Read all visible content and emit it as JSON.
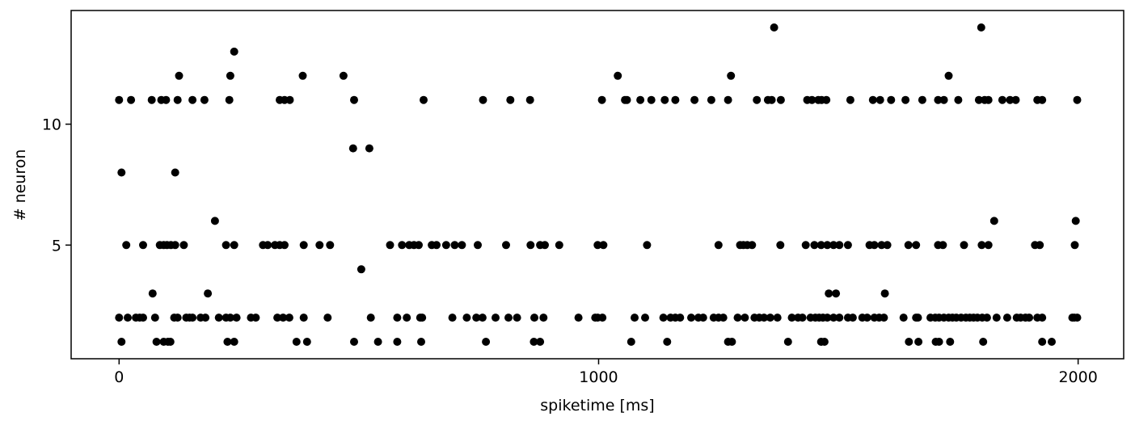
{
  "chart_data": {
    "type": "scatter",
    "title": "",
    "xlabel": "spiketime [ms]",
    "ylabel": "# neuron",
    "xlim": [
      -100,
      2095
    ],
    "ylim": [
      0.3,
      14.7
    ],
    "xticks": [
      0,
      1000,
      2000
    ],
    "xtick_labels": [
      "0",
      "1000",
      "2000"
    ],
    "yticks": [
      5,
      10
    ],
    "ytick_labels": [
      "5",
      "10"
    ],
    "grid": false,
    "marker_color": "#000000",
    "series": [
      {
        "points": [
          [
            0,
            11
          ],
          [
            25,
            11
          ],
          [
            68,
            11
          ],
          [
            88,
            11
          ],
          [
            98,
            11
          ],
          [
            122,
            11
          ],
          [
            153,
            11
          ],
          [
            178,
            11
          ],
          [
            230,
            11
          ],
          [
            335,
            11
          ],
          [
            345,
            11
          ],
          [
            356,
            11
          ],
          [
            490,
            11
          ],
          [
            635,
            11
          ],
          [
            759,
            11
          ],
          [
            816,
            11
          ],
          [
            857,
            11
          ],
          [
            1007,
            11
          ],
          [
            1055,
            11
          ],
          [
            1059,
            11
          ],
          [
            1087,
            11
          ],
          [
            1110,
            11
          ],
          [
            1138,
            11
          ],
          [
            1160,
            11
          ],
          [
            1200,
            11
          ],
          [
            1235,
            11
          ],
          [
            1270,
            11
          ],
          [
            1330,
            11
          ],
          [
            1353,
            11
          ],
          [
            1361,
            11
          ],
          [
            1380,
            11
          ],
          [
            1435,
            11
          ],
          [
            1445,
            11
          ],
          [
            1458,
            11
          ],
          [
            1465,
            11
          ],
          [
            1475,
            11
          ],
          [
            1525,
            11
          ],
          [
            1572,
            11
          ],
          [
            1587,
            11
          ],
          [
            1610,
            11
          ],
          [
            1640,
            11
          ],
          [
            1675,
            11
          ],
          [
            1708,
            11
          ],
          [
            1720,
            11
          ],
          [
            1750,
            11
          ],
          [
            1793,
            11
          ],
          [
            1805,
            11
          ],
          [
            1813,
            11
          ],
          [
            1842,
            11
          ],
          [
            1858,
            11
          ],
          [
            1870,
            11
          ],
          [
            1915,
            11
          ],
          [
            1925,
            11
          ],
          [
            1998,
            11
          ],
          [
            125,
            12
          ],
          [
            232,
            12
          ],
          [
            383,
            12
          ],
          [
            468,
            12
          ],
          [
            1040,
            12
          ],
          [
            1276,
            12
          ],
          [
            1730,
            12
          ],
          [
            240,
            13
          ],
          [
            1366,
            14
          ],
          [
            1798,
            14
          ],
          [
            5,
            8
          ],
          [
            117,
            8
          ],
          [
            488,
            9
          ],
          [
            522,
            9
          ],
          [
            200,
            6
          ],
          [
            1825,
            6
          ],
          [
            1995,
            6
          ],
          [
            15,
            5
          ],
          [
            50,
            5
          ],
          [
            85,
            5
          ],
          [
            93,
            5
          ],
          [
            100,
            5
          ],
          [
            108,
            5
          ],
          [
            117,
            5
          ],
          [
            135,
            5
          ],
          [
            223,
            5
          ],
          [
            240,
            5
          ],
          [
            300,
            5
          ],
          [
            310,
            5
          ],
          [
            325,
            5
          ],
          [
            335,
            5
          ],
          [
            345,
            5
          ],
          [
            385,
            5
          ],
          [
            418,
            5
          ],
          [
            440,
            5
          ],
          [
            565,
            5
          ],
          [
            590,
            5
          ],
          [
            605,
            5
          ],
          [
            615,
            5
          ],
          [
            625,
            5
          ],
          [
            652,
            5
          ],
          [
            662,
            5
          ],
          [
            682,
            5
          ],
          [
            700,
            5
          ],
          [
            715,
            5
          ],
          [
            748,
            5
          ],
          [
            807,
            5
          ],
          [
            858,
            5
          ],
          [
            878,
            5
          ],
          [
            888,
            5
          ],
          [
            918,
            5
          ],
          [
            998,
            5
          ],
          [
            1010,
            5
          ],
          [
            1101,
            5
          ],
          [
            1250,
            5
          ],
          [
            1295,
            5
          ],
          [
            1302,
            5
          ],
          [
            1310,
            5
          ],
          [
            1320,
            5
          ],
          [
            1379,
            5
          ],
          [
            1432,
            5
          ],
          [
            1450,
            5
          ],
          [
            1464,
            5
          ],
          [
            1477,
            5
          ],
          [
            1490,
            5
          ],
          [
            1502,
            5
          ],
          [
            1520,
            5
          ],
          [
            1565,
            5
          ],
          [
            1575,
            5
          ],
          [
            1590,
            5
          ],
          [
            1602,
            5
          ],
          [
            1646,
            5
          ],
          [
            1662,
            5
          ],
          [
            1708,
            5
          ],
          [
            1718,
            5
          ],
          [
            1762,
            5
          ],
          [
            1799,
            5
          ],
          [
            1813,
            5
          ],
          [
            1910,
            5
          ],
          [
            1920,
            5
          ],
          [
            1993,
            5
          ],
          [
            70,
            3
          ],
          [
            185,
            3
          ],
          [
            1480,
            3
          ],
          [
            1495,
            3
          ],
          [
            1597,
            3
          ],
          [
            505,
            4
          ],
          [
            0,
            2
          ],
          [
            18,
            2
          ],
          [
            35,
            2
          ],
          [
            43,
            2
          ],
          [
            50,
            2
          ],
          [
            75,
            2
          ],
          [
            115,
            2
          ],
          [
            122,
            2
          ],
          [
            140,
            2
          ],
          [
            147,
            2
          ],
          [
            153,
            2
          ],
          [
            170,
            2
          ],
          [
            180,
            2
          ],
          [
            208,
            2
          ],
          [
            223,
            2
          ],
          [
            232,
            2
          ],
          [
            245,
            2
          ],
          [
            275,
            2
          ],
          [
            285,
            2
          ],
          [
            330,
            2
          ],
          [
            342,
            2
          ],
          [
            355,
            2
          ],
          [
            385,
            2
          ],
          [
            435,
            2
          ],
          [
            525,
            2
          ],
          [
            580,
            2
          ],
          [
            600,
            2
          ],
          [
            628,
            2
          ],
          [
            632,
            2
          ],
          [
            695,
            2
          ],
          [
            725,
            2
          ],
          [
            745,
            2
          ],
          [
            758,
            2
          ],
          [
            785,
            2
          ],
          [
            812,
            2
          ],
          [
            830,
            2
          ],
          [
            866,
            2
          ],
          [
            885,
            2
          ],
          [
            958,
            2
          ],
          [
            993,
            2
          ],
          [
            998,
            2
          ],
          [
            1008,
            2
          ],
          [
            1075,
            2
          ],
          [
            1097,
            2
          ],
          [
            1135,
            2
          ],
          [
            1150,
            2
          ],
          [
            1160,
            2
          ],
          [
            1170,
            2
          ],
          [
            1193,
            2
          ],
          [
            1208,
            2
          ],
          [
            1218,
            2
          ],
          [
            1240,
            2
          ],
          [
            1250,
            2
          ],
          [
            1260,
            2
          ],
          [
            1290,
            2
          ],
          [
            1305,
            2
          ],
          [
            1325,
            2
          ],
          [
            1335,
            2
          ],
          [
            1345,
            2
          ],
          [
            1358,
            2
          ],
          [
            1373,
            2
          ],
          [
            1403,
            2
          ],
          [
            1416,
            2
          ],
          [
            1425,
            2
          ],
          [
            1442,
            2
          ],
          [
            1452,
            2
          ],
          [
            1460,
            2
          ],
          [
            1468,
            2
          ],
          [
            1477,
            2
          ],
          [
            1490,
            2
          ],
          [
            1502,
            2
          ],
          [
            1520,
            2
          ],
          [
            1530,
            2
          ],
          [
            1550,
            2
          ],
          [
            1560,
            2
          ],
          [
            1575,
            2
          ],
          [
            1585,
            2
          ],
          [
            1595,
            2
          ],
          [
            1636,
            2
          ],
          [
            1662,
            2
          ],
          [
            1666,
            2
          ],
          [
            1692,
            2
          ],
          [
            1702,
            2
          ],
          [
            1710,
            2
          ],
          [
            1720,
            2
          ],
          [
            1730,
            2
          ],
          [
            1738,
            2
          ],
          [
            1746,
            2
          ],
          [
            1756,
            2
          ],
          [
            1766,
            2
          ],
          [
            1774,
            2
          ],
          [
            1782,
            2
          ],
          [
            1790,
            2
          ],
          [
            1800,
            2
          ],
          [
            1810,
            2
          ],
          [
            1830,
            2
          ],
          [
            1852,
            2
          ],
          [
            1872,
            2
          ],
          [
            1880,
            2
          ],
          [
            1890,
            2
          ],
          [
            1898,
            2
          ],
          [
            1915,
            2
          ],
          [
            1925,
            2
          ],
          [
            1988,
            2
          ],
          [
            1992,
            2
          ],
          [
            1998,
            2
          ],
          [
            5,
            1
          ],
          [
            78,
            1
          ],
          [
            93,
            1
          ],
          [
            102,
            1
          ],
          [
            107,
            1
          ],
          [
            226,
            1
          ],
          [
            240,
            1
          ],
          [
            370,
            1
          ],
          [
            392,
            1
          ],
          [
            490,
            1
          ],
          [
            540,
            1
          ],
          [
            580,
            1
          ],
          [
            630,
            1
          ],
          [
            765,
            1
          ],
          [
            865,
            1
          ],
          [
            878,
            1
          ],
          [
            1068,
            1
          ],
          [
            1143,
            1
          ],
          [
            1270,
            1
          ],
          [
            1278,
            1
          ],
          [
            1395,
            1
          ],
          [
            1464,
            1
          ],
          [
            1471,
            1
          ],
          [
            1647,
            1
          ],
          [
            1667,
            1
          ],
          [
            1703,
            1
          ],
          [
            1710,
            1
          ],
          [
            1733,
            1
          ],
          [
            1802,
            1
          ],
          [
            1925,
            1
          ],
          [
            1945,
            1
          ]
        ]
      }
    ]
  }
}
